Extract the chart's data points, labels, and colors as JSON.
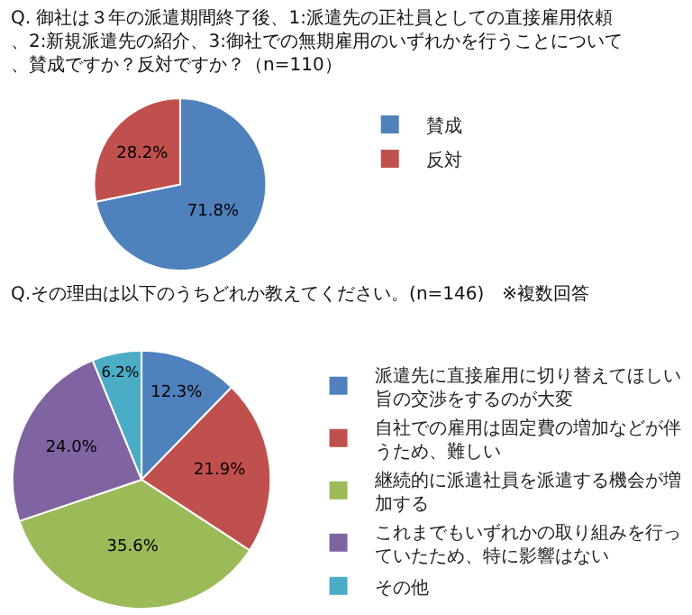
{
  "chart_data": [
    {
      "type": "pie",
      "title": "Q. 御社は３年の派遣期間終了後、1:派遣先の正社員としての直接雇用依頼、2:新規派遣先の紹介、3:御社での無期雇用のいずれかを行うことについて、賛成ですか？反対ですか？（n=110）",
      "categories": [
        "賛成",
        "反対"
      ],
      "values": [
        71.8,
        28.2
      ],
      "colors": [
        "#4f81bd",
        "#c0504d"
      ],
      "value_labels": [
        "71.8%",
        "28.2%"
      ],
      "legend": "right"
    },
    {
      "type": "pie",
      "title": "Q.その理由は以下のうちどれか教えてください。(n=146)　※複数回答",
      "categories": [
        "派遣先に直接雇用に切り替えてほしい旨の交渉をするのが大変",
        "自社での雇用は固定費の増加などが伴うため、難しい",
        "継続的に派遣社員を派遣する機会が増加する",
        "これまでもいずれかの取り組みを行っていたため、特に影響はない",
        "その他"
      ],
      "values": [
        12.3,
        21.9,
        35.6,
        24.0,
        6.2
      ],
      "colors": [
        "#4f81bd",
        "#c0504d",
        "#9bbb59",
        "#8064a2",
        "#4bacc6"
      ],
      "value_labels": [
        "12.3%",
        "21.9%",
        "35.6%",
        "24.0%",
        "6.2%"
      ],
      "legend": "right"
    }
  ]
}
